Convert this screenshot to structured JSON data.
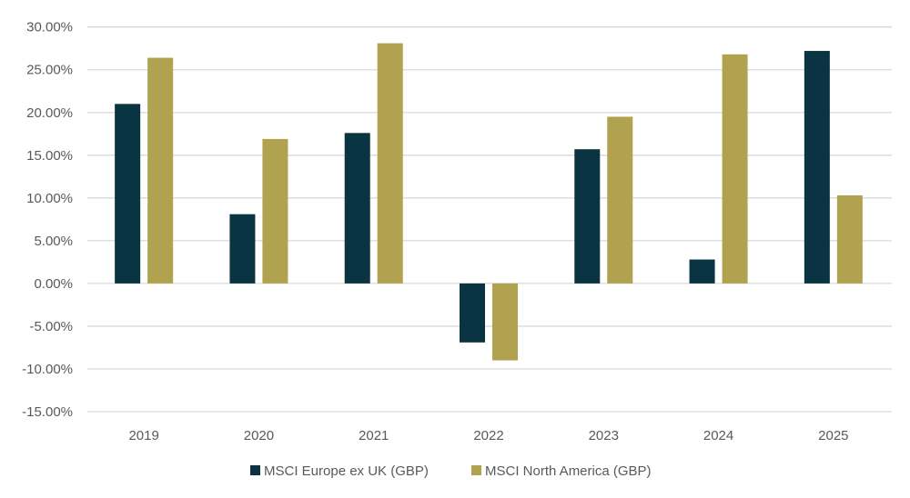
{
  "chart_data": {
    "type": "bar",
    "title": "",
    "xlabel": "",
    "ylabel": "",
    "categories": [
      "2019",
      "2020",
      "2021",
      "2022",
      "2023",
      "2024",
      "2025"
    ],
    "series": [
      {
        "name": "MSCI Europe ex UK (GBP)",
        "color": "#0a3442",
        "values": [
          21.0,
          8.1,
          17.6,
          -6.9,
          15.7,
          2.8,
          27.2
        ]
      },
      {
        "name": "MSCI North America (GBP)",
        "color": "#b0a24e",
        "values": [
          26.4,
          16.9,
          28.1,
          -9.0,
          19.5,
          26.8,
          10.3
        ]
      }
    ],
    "ylim": [
      -15,
      30
    ],
    "yticks": [
      "-15.00%",
      "-10.00%",
      "-5.00%",
      "0.00%",
      "5.00%",
      "10.00%",
      "15.00%",
      "20.00%",
      "25.00%",
      "30.00%"
    ],
    "ytick_values": [
      -15,
      -10,
      -5,
      0,
      5,
      10,
      15,
      20,
      25,
      30
    ],
    "grid": true,
    "legend_position": "bottom"
  }
}
